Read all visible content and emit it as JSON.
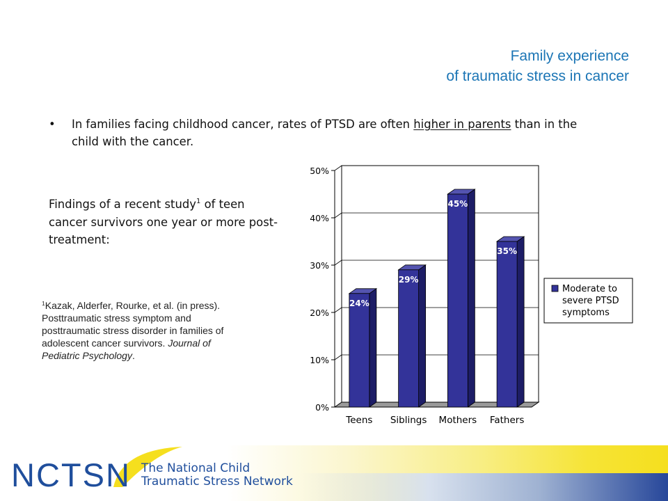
{
  "slide": {
    "title_line1": "Family experience",
    "title_line2": "of traumatic stress in cancer",
    "bullet": {
      "marker": "•",
      "text_before": "In families facing childhood cancer, rates of PTSD are often ",
      "text_underlined": "higher in parents",
      "text_after": " than in the child with the cancer."
    },
    "findings": {
      "text_before": "Findings of a recent study",
      "sup": "1",
      "text_after": " of teen cancer survivors one year or more post-treatment:"
    },
    "citation": {
      "sup": "1",
      "authors": "Kazak, Alderfer, Rourke, et al. (in press). Posttraumatic stress symptom and posttraumatic stress disorder in families of adolescent cancer survivors. ",
      "journal": "Journal of Pediatric Psychology",
      "end": "."
    }
  },
  "chart_data": {
    "type": "bar",
    "title": "",
    "xlabel": "",
    "ylabel": "",
    "categories": [
      "Teens",
      "Siblings",
      "Mothers",
      "Fathers"
    ],
    "series": [
      {
        "name": "Moderate to severe PTSD symptoms",
        "values": [
          24,
          29,
          45,
          35
        ],
        "labels": [
          "24%",
          "29%",
          "45%",
          "35%"
        ]
      }
    ],
    "ylim": [
      0,
      50
    ],
    "yticks": [
      0,
      10,
      20,
      30,
      40,
      50
    ],
    "ytick_labels": [
      "0%",
      "10%",
      "20%",
      "30%",
      "40%",
      "50%"
    ],
    "legend_lines": [
      "Moderate to",
      "severe PTSD",
      "symptoms"
    ],
    "legend_position": "right",
    "grid": true,
    "three_d": true,
    "colors": {
      "bar": "#333399",
      "bar_side": "#1d1d66",
      "bar_top": "#5454b0",
      "plot_bg": "#ffffff",
      "floor": "#9a9a9a",
      "label": "#ffffff"
    }
  },
  "footer": {
    "logo": "NCTSN",
    "org_line1": "The National Child",
    "org_line2": "Traumatic Stress Network",
    "colors": {
      "logo_blue": "#1f4e9c",
      "arc_yellow": "#f5df1e"
    }
  }
}
